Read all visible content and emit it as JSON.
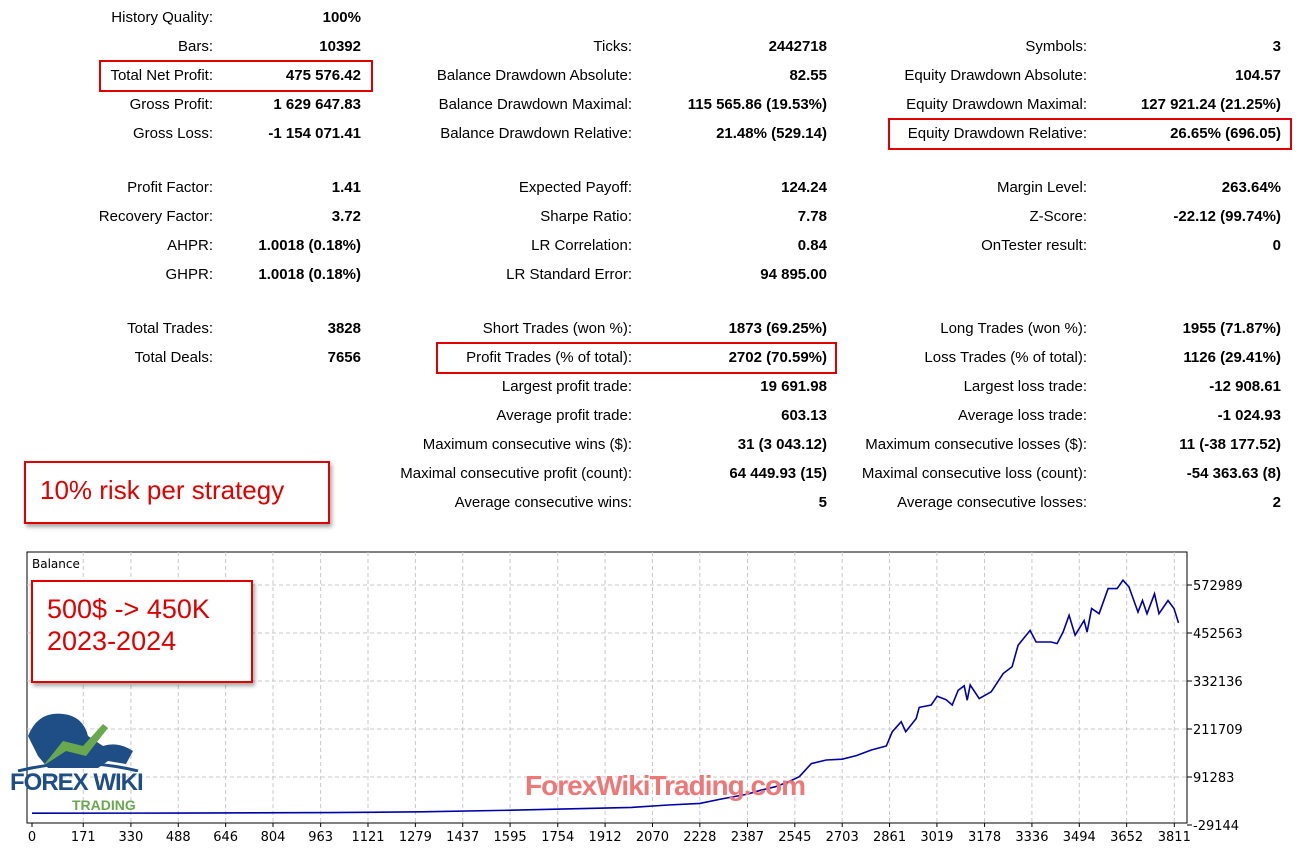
{
  "report": {
    "columns": [
      [
        {
          "label": "History Quality:",
          "value": "100%"
        },
        {
          "label": "Bars:",
          "value": "10392"
        },
        {
          "label": "Total Net Profit:",
          "value": "475 576.42",
          "highlight": true
        },
        {
          "label": "Gross Profit:",
          "value": "1 629 647.83"
        },
        {
          "label": "Gross Loss:",
          "value": "-1 154 071.41"
        },
        null,
        {
          "label": "Profit Factor:",
          "value": "1.41"
        },
        {
          "label": "Recovery Factor:",
          "value": "3.72"
        },
        {
          "label": "AHPR:",
          "value": "1.0018 (0.18%)"
        },
        {
          "label": "GHPR:",
          "value": "1.0018 (0.18%)"
        },
        null,
        {
          "label": "Total Trades:",
          "value": "3828"
        },
        {
          "label": "Total Deals:",
          "value": "7656"
        }
      ],
      [
        null,
        {
          "label": "Ticks:",
          "value": "2442718"
        },
        {
          "label": "Balance Drawdown Absolute:",
          "value": "82.55"
        },
        {
          "label": "Balance Drawdown Maximal:",
          "value": "115 565.86 (19.53%)"
        },
        {
          "label": "Balance Drawdown Relative:",
          "value": "21.48% (529.14)"
        },
        null,
        {
          "label": "Expected Payoff:",
          "value": "124.24"
        },
        {
          "label": "Sharpe Ratio:",
          "value": "7.78"
        },
        {
          "label": "LR Correlation:",
          "value": "0.84"
        },
        {
          "label": "LR Standard Error:",
          "value": "94 895.00"
        },
        null,
        {
          "label": "Short Trades (won %):",
          "value": "1873 (69.25%)"
        },
        {
          "label": "Profit Trades (% of total):",
          "value": "2702 (70.59%)",
          "highlight": true
        },
        {
          "label": "Largest profit trade:",
          "value": "19 691.98"
        },
        {
          "label": "Average profit trade:",
          "value": "603.13"
        },
        {
          "label": "Maximum consecutive wins ($):",
          "value": "31 (3 043.12)"
        },
        {
          "label": "Maximal consecutive profit (count):",
          "value": "64 449.93 (15)"
        },
        {
          "label": "Average consecutive wins:",
          "value": "5"
        }
      ],
      [
        null,
        {
          "label": "Symbols:",
          "value": "3"
        },
        {
          "label": "Equity Drawdown Absolute:",
          "value": "104.57"
        },
        {
          "label": "Equity Drawdown Maximal:",
          "value": "127 921.24 (21.25%)"
        },
        {
          "label": "Equity Drawdown Relative:",
          "value": "26.65% (696.05)",
          "highlight": true
        },
        null,
        {
          "label": "Margin Level:",
          "value": "263.64%"
        },
        {
          "label": "Z-Score:",
          "value": "-22.12 (99.74%)"
        },
        {
          "label": "OnTester result:",
          "value": "0"
        },
        null,
        null,
        {
          "label": "Long Trades (won %):",
          "value": "1955 (71.87%)"
        },
        {
          "label": "Loss Trades (% of total):",
          "value": "1126 (29.41%)"
        },
        {
          "label": "Largest loss trade:",
          "value": "-12 908.61"
        },
        {
          "label": "Average loss trade:",
          "value": "-1 024.93"
        },
        {
          "label": "Maximum consecutive losses ($):",
          "value": "11 (-38 177.52)"
        },
        {
          "label": "Maximal consecutive loss (count):",
          "value": "-54 363.63 (8)"
        },
        {
          "label": "Average consecutive losses:",
          "value": "2"
        }
      ]
    ]
  },
  "notes": {
    "risk": "10% risk per strategy",
    "growth_line1": "500$ -> 450K",
    "growth_line2": "2023-2024"
  },
  "logo": {
    "text1": "FOREX",
    "text2": "WIKI",
    "text3": "TRADING"
  },
  "watermark": "ForexWikiTrading.com",
  "colors": {
    "line": "#0000aa",
    "highlight": "#e00000",
    "grid": "#c8c8c8"
  },
  "chart_data": {
    "type": "line",
    "title": "Balance",
    "xlabel": "",
    "ylabel": "",
    "x_ticks": [
      0,
      171,
      330,
      488,
      646,
      804,
      963,
      1121,
      1279,
      1437,
      1595,
      1754,
      1912,
      2070,
      2228,
      2387,
      2545,
      2703,
      2861,
      3019,
      3178,
      3336,
      3494,
      3652,
      3811
    ],
    "y_ticks": [
      -29144,
      91283,
      211709,
      332136,
      452563,
      572989
    ],
    "xlim": [
      0,
      3830
    ],
    "ylim": [
      -29144,
      632000
    ],
    "grid": true,
    "series": [
      {
        "name": "Balance",
        "x": [
          0,
          500,
          1000,
          1300,
          1600,
          2000,
          2123,
          2228,
          2300,
          2387,
          2430,
          2480,
          2520,
          2560,
          2600,
          2650,
          2703,
          2750,
          2800,
          2850,
          2870,
          2900,
          2915,
          2950,
          2960,
          3000,
          3020,
          3050,
          3070,
          3090,
          3110,
          3120,
          3130,
          3160,
          3200,
          3240,
          3270,
          3290,
          3330,
          3350,
          3400,
          3420,
          3440,
          3460,
          3480,
          3510,
          3520,
          3535,
          3560,
          3590,
          3620,
          3640,
          3660,
          3690,
          3705,
          3720,
          3745,
          3760,
          3790,
          3810,
          3825
        ],
        "y": [
          500,
          700,
          2000,
          4000,
          8000,
          15000,
          21000,
          25000,
          36000,
          48500,
          58000,
          67000,
          78000,
          92000,
          125000,
          134000,
          136000,
          145000,
          159000,
          169000,
          205000,
          230000,
          205000,
          238000,
          266000,
          272000,
          294000,
          285000,
          272000,
          309000,
          320000,
          284000,
          322000,
          288000,
          305000,
          351000,
          368000,
          422000,
          459000,
          430000,
          430000,
          426000,
          455000,
          497000,
          447000,
          484000,
          455000,
          514000,
          501000,
          564000,
          564000,
          585000,
          568000,
          505000,
          534000,
          501000,
          551000,
          501000,
          534000,
          514000,
          478000
        ]
      }
    ]
  }
}
